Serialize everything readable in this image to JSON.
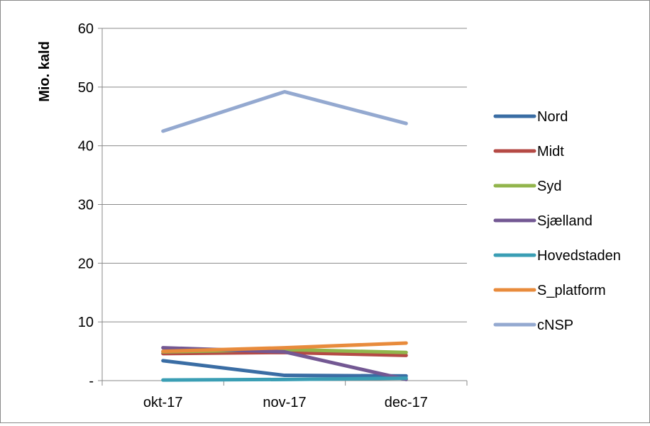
{
  "chart_data": {
    "type": "line",
    "title": "",
    "ylabel": "Mio. kald",
    "xlabel": "",
    "categories": [
      "okt-17",
      "nov-17",
      "dec-17"
    ],
    "ylim": [
      0,
      60
    ],
    "yticks": [
      0,
      10,
      20,
      30,
      40,
      50,
      60
    ],
    "ytick_labels": [
      "-",
      "10",
      "20",
      "30",
      "40",
      "50",
      "60"
    ],
    "grid": true,
    "legend_position": "right",
    "series": [
      {
        "name": "Nord",
        "color": "#3A6DA4",
        "values": [
          3.4,
          0.9,
          0.8
        ]
      },
      {
        "name": "Midt",
        "color": "#B54A45",
        "values": [
          4.6,
          4.8,
          4.3
        ]
      },
      {
        "name": "Syd",
        "color": "#92B54C",
        "values": [
          4.9,
          5.3,
          4.8
        ]
      },
      {
        "name": "Sjælland",
        "color": "#735893",
        "values": [
          5.6,
          4.9,
          0.2
        ]
      },
      {
        "name": "Hovedstaden",
        "color": "#3A9EB4",
        "values": [
          0.1,
          0.2,
          0.4
        ]
      },
      {
        "name": "S_platform",
        "color": "#E88B3C",
        "values": [
          5.0,
          5.6,
          6.4
        ]
      },
      {
        "name": "cNSP",
        "color": "#94A9D0",
        "values": [
          42.5,
          49.2,
          43.8
        ]
      }
    ]
  }
}
